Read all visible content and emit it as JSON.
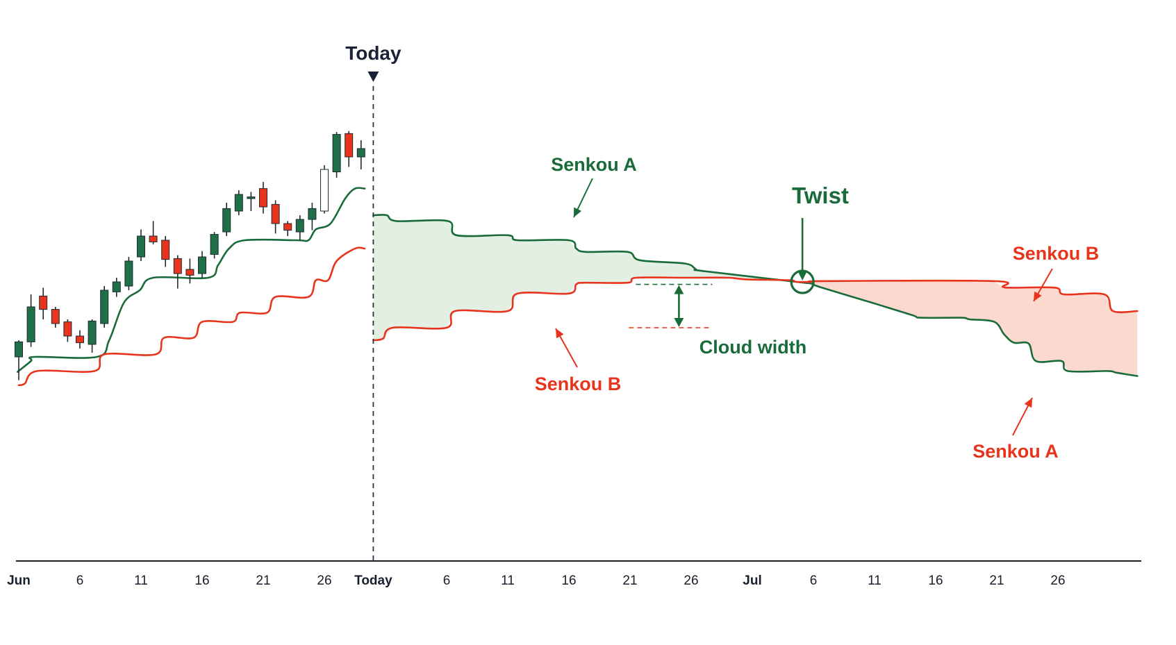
{
  "chart_data": {
    "type": "line",
    "title": "",
    "xlabel": "",
    "ylabel": "",
    "x_tick_labels": [
      {
        "day": 0,
        "label": "Jun",
        "bold": true
      },
      {
        "day": 5,
        "label": "6"
      },
      {
        "day": 10,
        "label": "11"
      },
      {
        "day": 15,
        "label": "16"
      },
      {
        "day": 20,
        "label": "21"
      },
      {
        "day": 25,
        "label": "26"
      },
      {
        "day": 29,
        "label": "Today",
        "bold": true
      },
      {
        "day": 35,
        "label": "6"
      },
      {
        "day": 40,
        "label": "11"
      },
      {
        "day": 45,
        "label": "16"
      },
      {
        "day": 50,
        "label": "21"
      },
      {
        "day": 55,
        "label": "26"
      },
      {
        "day": 60,
        "label": "Jul",
        "bold": true
      },
      {
        "day": 65,
        "label": "6"
      },
      {
        "day": 70,
        "label": "11"
      },
      {
        "day": 75,
        "label": "16"
      },
      {
        "day": 80,
        "label": "21"
      },
      {
        "day": 85,
        "label": "26"
      }
    ],
    "today": {
      "day": 29,
      "label": "Today"
    },
    "candles": [
      {
        "day": 0,
        "o": 280,
        "h": 300,
        "l": 252,
        "c": 298
      },
      {
        "day": 1,
        "o": 298,
        "h": 355,
        "l": 292,
        "c": 340
      },
      {
        "day": 2,
        "o": 353,
        "h": 363,
        "l": 325,
        "c": 337
      },
      {
        "day": 3,
        "o": 337,
        "h": 340,
        "l": 315,
        "c": 320
      },
      {
        "day": 4,
        "o": 322,
        "h": 325,
        "l": 298,
        "c": 305
      },
      {
        "day": 5,
        "o": 305,
        "h": 312,
        "l": 290,
        "c": 297
      },
      {
        "day": 6,
        "o": 295,
        "h": 325,
        "l": 285,
        "c": 323
      },
      {
        "day": 7,
        "o": 320,
        "h": 365,
        "l": 315,
        "c": 360
      },
      {
        "day": 8,
        "o": 358,
        "h": 375,
        "l": 352,
        "c": 370
      },
      {
        "day": 9,
        "o": 365,
        "h": 400,
        "l": 360,
        "c": 395
      },
      {
        "day": 10,
        "o": 400,
        "h": 433,
        "l": 395,
        "c": 425
      },
      {
        "day": 11,
        "o": 425,
        "h": 443,
        "l": 415,
        "c": 418
      },
      {
        "day": 12,
        "o": 420,
        "h": 425,
        "l": 388,
        "c": 397
      },
      {
        "day": 13,
        "o": 398,
        "h": 402,
        "l": 362,
        "c": 380
      },
      {
        "day": 14,
        "o": 385,
        "h": 398,
        "l": 368,
        "c": 378
      },
      {
        "day": 15,
        "o": 380,
        "h": 407,
        "l": 375,
        "c": 400
      },
      {
        "day": 16,
        "o": 403,
        "h": 430,
        "l": 398,
        "c": 427
      },
      {
        "day": 17,
        "o": 430,
        "h": 465,
        "l": 425,
        "c": 458
      },
      {
        "day": 18,
        "o": 455,
        "h": 480,
        "l": 450,
        "c": 475
      },
      {
        "day": 19,
        "o": 470,
        "h": 478,
        "l": 455,
        "c": 472
      },
      {
        "day": 20,
        "o": 482,
        "h": 490,
        "l": 452,
        "c": 460
      },
      {
        "day": 21,
        "o": 463,
        "h": 468,
        "l": 428,
        "c": 440
      },
      {
        "day": 22,
        "o": 440,
        "h": 443,
        "l": 425,
        "c": 432
      },
      {
        "day": 23,
        "o": 430,
        "h": 450,
        "l": 420,
        "c": 445
      },
      {
        "day": 24,
        "o": 445,
        "h": 465,
        "l": 432,
        "c": 458
      },
      {
        "day": 25,
        "o": 455,
        "h": 510,
        "l": 452,
        "c": 505
      },
      {
        "day": 26,
        "o": 502,
        "h": 550,
        "l": 495,
        "c": 547
      },
      {
        "day": 27,
        "o": 548,
        "h": 551,
        "l": 508,
        "c": 520
      },
      {
        "day": 28,
        "o": 520,
        "h": 540,
        "l": 505,
        "c": 530
      }
    ],
    "series": [
      {
        "key": "green_line_past",
        "color": "#1a6b3a",
        "x": [
          -0.1,
          1,
          1.3,
          6.4,
          7.4,
          8.6,
          9.9,
          11,
          15.5,
          16.3,
          17.2,
          18.5,
          22.7,
          23.7,
          24.3,
          25.5,
          26.7,
          27.5,
          28.3
        ],
        "y": [
          262,
          275,
          280,
          280,
          300,
          345,
          360,
          375,
          375,
          390,
          410,
          420,
          420,
          420,
          433,
          440,
          470,
          482,
          482
        ]
      },
      {
        "key": "red_line_past",
        "color": "#e8341c",
        "x": [
          0,
          0.5,
          1.5,
          6.2,
          7,
          11.2,
          11.9,
          14.3,
          15,
          17.5,
          18.1,
          20.3,
          21,
          23.7,
          24.3,
          25.3,
          26,
          27.5,
          28.3
        ],
        "y": [
          246,
          248,
          263,
          263,
          283,
          283,
          303,
          303,
          322,
          322,
          333,
          333,
          352,
          352,
          372,
          372,
          395,
          410,
          410
        ]
      },
      {
        "key": "senkou_a",
        "name": "Senkou A",
        "color": "#1a6b3a",
        "x": [
          29,
          30.1,
          30.9,
          35.1,
          35.8,
          40,
          40.8,
          45,
          45.6,
          46.4,
          49.8,
          50.8,
          54.5,
          55.4,
          56,
          63.6,
          64.8,
          65.5,
          69.1,
          69.8,
          73.1,
          73.8,
          77.1,
          77.8,
          79.8,
          80.6,
          81.4,
          82.6,
          83.2,
          85.3,
          85.8,
          89.1,
          89.8,
          91.5
        ],
        "y": [
          450,
          450,
          443,
          443,
          426,
          426,
          420,
          420,
          410,
          406,
          406,
          396,
          392,
          385,
          383,
          370,
          368,
          364,
          348,
          345,
          330,
          327,
          327,
          325,
          322,
          307,
          297,
          296,
          275,
          275,
          263,
          263,
          261,
          257
        ]
      },
      {
        "key": "senkou_b",
        "name": "Senkou B",
        "color": "#e8341c",
        "x": [
          29,
          29.8,
          30.6,
          35,
          35.7,
          40,
          40.8,
          45,
          45.6,
          46.3,
          49.8,
          50.5,
          54.5,
          58,
          59.5,
          63,
          63.6,
          64.8,
          66,
          79.7,
          80.5,
          81.4,
          84.8,
          85.5,
          88.8,
          89.5,
          91.5
        ],
        "y": [
          300,
          302,
          315,
          315,
          335,
          335,
          356,
          356,
          367,
          369,
          369,
          375,
          375,
          375,
          373,
          372,
          370,
          370,
          371,
          371,
          364,
          363,
          363,
          355,
          355,
          335,
          335
        ]
      }
    ],
    "twist": {
      "day": 64.1,
      "value": 370
    },
    "cloud_width": {
      "day": 54,
      "top": 367,
      "bottom": 315
    },
    "annotations": {
      "today": "Today",
      "senkou_a_top": "Senkou A",
      "twist": "Twist",
      "senkou_b_right": "Senkou B",
      "cloud_width": "Cloud width",
      "senkou_b_bottom": "Senkou B",
      "senkou_a_right": "Senkou A"
    },
    "colors": {
      "bull": "#1f7048",
      "bear": "#e8341c",
      "green_cloud": "#e3efe2",
      "red_cloud": "#fbd9cf",
      "axis": "#1a1f2e"
    }
  }
}
